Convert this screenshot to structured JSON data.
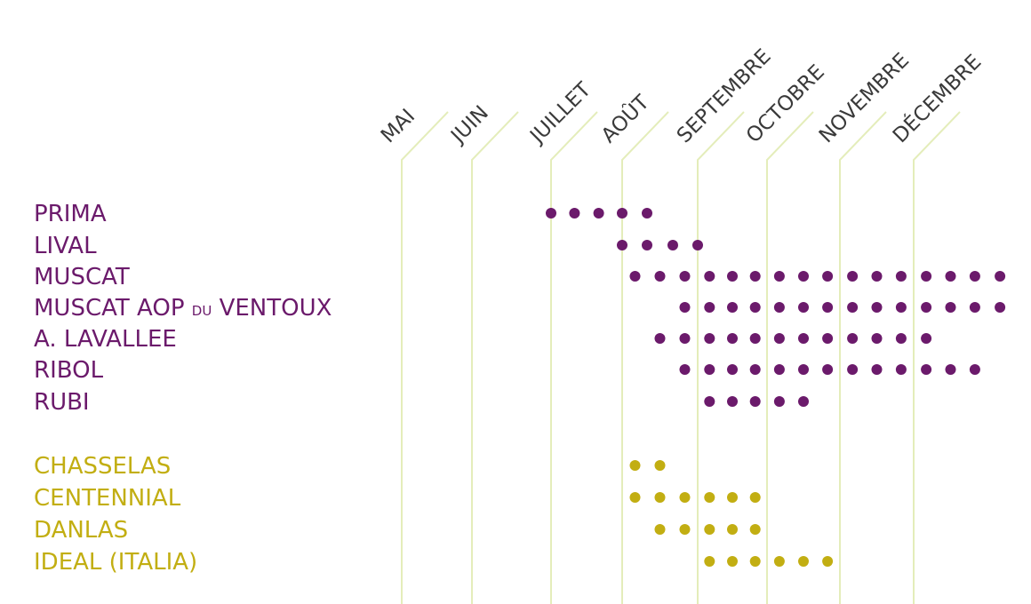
{
  "chart_data": {
    "type": "scatter",
    "title": "",
    "xlabel": "",
    "ylabel": "",
    "grid": true,
    "legend": "none",
    "colors": {
      "purple": "#6b1a6b",
      "gold": "#c2ae12",
      "gridline": "#e4edba",
      "month_text": "#3a3a3a"
    },
    "months": [
      "MAI",
      "JUIN",
      "JUILLET",
      "AOÛT",
      "SEPTEMBRE",
      "OCTOBRE",
      "NOVEMBRE",
      "DÉCEMBRE"
    ],
    "month_unit": "month index (0 = start of MAI)",
    "series": [
      {
        "name": "PRIMA",
        "name_main": "PRIMA",
        "name_small": "",
        "name_end": "",
        "group": "purple",
        "x": [
          2.0,
          2.33,
          2.67,
          3.0,
          3.33
        ]
      },
      {
        "name": "LIVAL",
        "name_main": "LIVAL",
        "name_small": "",
        "name_end": "",
        "group": "purple",
        "x": [
          3.0,
          3.33,
          3.67,
          4.0
        ]
      },
      {
        "name": "MUSCAT",
        "name_main": "MUSCAT",
        "name_small": "",
        "name_end": "",
        "group": "purple",
        "x": [
          3.17,
          3.5,
          3.83,
          4.17,
          4.5,
          4.83,
          5.17,
          5.5,
          5.83,
          6.17,
          6.5,
          6.83,
          7.17,
          7.5,
          7.83,
          8.17
        ]
      },
      {
        "name": "MUSCAT AOP DU VENTOUX",
        "name_main": "MUSCAT AOP ",
        "name_small": "DU",
        "name_end": " VENTOUX",
        "group": "purple",
        "x": [
          3.83,
          4.17,
          4.5,
          4.83,
          5.17,
          5.5,
          5.83,
          6.17,
          6.5,
          6.83,
          7.17,
          7.5,
          7.83,
          8.17
        ]
      },
      {
        "name": "A. LAVALLEE",
        "name_main": "A. LAVALLEE",
        "name_small": "",
        "name_end": "",
        "group": "purple",
        "x": [
          3.5,
          3.83,
          4.17,
          4.5,
          4.83,
          5.17,
          5.5,
          5.83,
          6.17,
          6.5,
          6.83,
          7.17
        ]
      },
      {
        "name": "RIBOL",
        "name_main": "RIBOL",
        "name_small": "",
        "name_end": "",
        "group": "purple",
        "x": [
          3.83,
          4.17,
          4.5,
          4.83,
          5.17,
          5.5,
          5.83,
          6.17,
          6.5,
          6.83,
          7.17,
          7.5,
          7.83
        ]
      },
      {
        "name": "RUBI",
        "name_main": "RUBI",
        "name_small": "",
        "name_end": "",
        "group": "purple",
        "x": [
          4.17,
          4.5,
          4.83,
          5.17,
          5.5
        ]
      },
      {
        "name": "CHASSELAS",
        "name_main": "CHASSELAS",
        "name_small": "",
        "name_end": "",
        "group": "gold",
        "x": [
          3.17,
          3.5
        ]
      },
      {
        "name": "CENTENNIAL",
        "name_main": "CENTENNIAL",
        "name_small": "",
        "name_end": "",
        "group": "gold",
        "x": [
          3.17,
          3.5,
          3.83,
          4.17,
          4.5,
          4.83
        ]
      },
      {
        "name": "DANLAS",
        "name_main": "DANLAS",
        "name_small": "",
        "name_end": "",
        "group": "gold",
        "x": [
          3.5,
          3.83,
          4.17,
          4.5,
          4.83
        ]
      },
      {
        "name": "IDEAL (ITALIA)",
        "name_main": "IDEAL (ITALIA)",
        "name_small": "",
        "name_end": "",
        "group": "gold",
        "x": [
          4.17,
          4.5,
          4.83,
          5.17,
          5.5,
          5.83
        ]
      }
    ]
  }
}
